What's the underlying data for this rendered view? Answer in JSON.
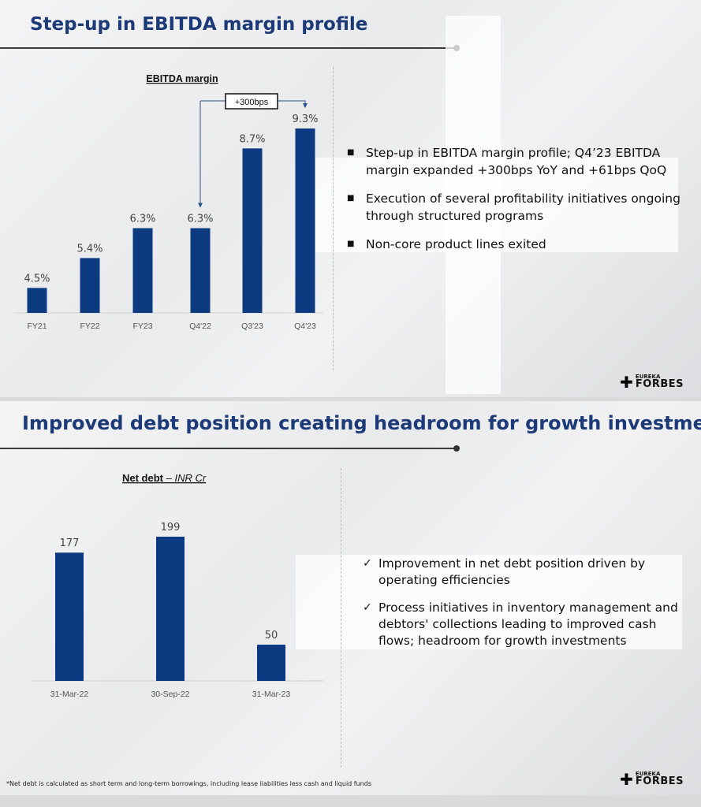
{
  "slide1": {
    "title": "Step-up in EBITDA margin profile",
    "bullets": [
      "Step-up in EBITDA margin profile; Q4’23 EBITDA margin expanded +300bps YoY and +61bps QoQ",
      "Execution of several profitability initiatives ongoing through structured programs",
      "Non-core product lines exited"
    ],
    "logo": {
      "line1": "EUREKA",
      "line2": "FORBES"
    }
  },
  "slide2": {
    "title": "Improved debt position creating headroom for growth investments",
    "bullets": [
      "Improvement in net debt position driven by operating efficiencies",
      "Process initiatives in inventory management and debtors' collections leading to improved cash flows; headroom for growth investments"
    ],
    "footnote": "*Net debt is calculated as short term and long-term borrowings, including lease liabilities less cash and liquid funds",
    "logo": {
      "line1": "EUREKA",
      "line2": "FORBES"
    }
  },
  "chart_data": [
    {
      "type": "bar",
      "title": "EBITDA margin",
      "categories": [
        "FY21",
        "FY22",
        "FY23",
        "Q4'22",
        "Q3'23",
        "Q4'23"
      ],
      "values": [
        4.5,
        5.4,
        6.3,
        6.3,
        8.7,
        9.3
      ],
      "data_labels": [
        "4.5%",
        "5.4%",
        "6.3%",
        "6.3%",
        "8.7%",
        "9.3%"
      ],
      "unit": "%",
      "annotation": {
        "text": "+300bps",
        "from": "Q4'22",
        "to": "Q4'23"
      },
      "ylim": [
        3.75,
        9.8
      ],
      "bar_color": "#0b3a80",
      "grid": false
    },
    {
      "type": "bar",
      "title": "Net debt",
      "subtitle": "– INR Cr",
      "categories": [
        "31-Mar-22",
        "30-Sep-22",
        "31-Mar-23"
      ],
      "values": [
        177,
        199,
        50
      ],
      "data_labels": [
        "177",
        "199",
        "50"
      ],
      "ylim": [
        0,
        215
      ],
      "bar_color": "#0b3a80",
      "grid": false
    }
  ]
}
